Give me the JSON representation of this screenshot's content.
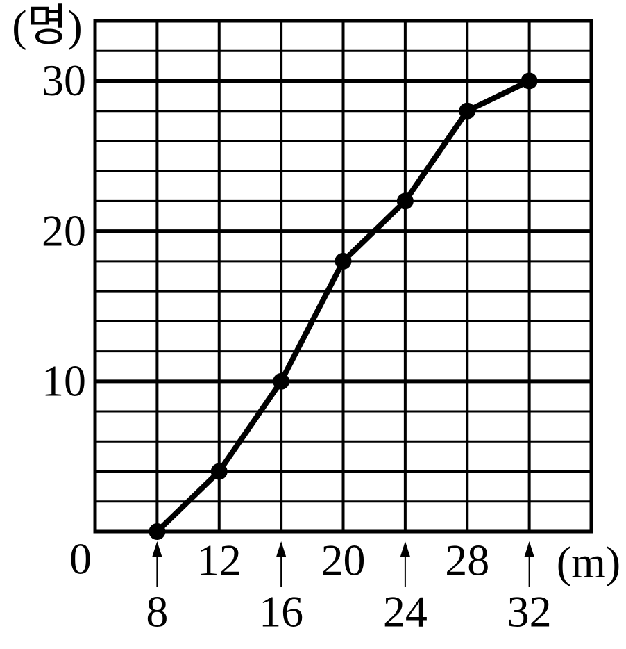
{
  "chart_data": {
    "type": "line",
    "x_label": "(m)",
    "y_label": "(명)",
    "x": [
      8,
      12,
      16,
      20,
      24,
      28,
      32
    ],
    "series": [
      {
        "color": "#000000",
        "values": [
          0,
          4,
          10,
          18,
          22,
          28,
          30
        ]
      }
    ],
    "xlim": [
      4,
      36
    ],
    "ylim": [
      0,
      34
    ],
    "xticks": [
      8,
      12,
      16,
      20,
      24,
      28,
      32
    ],
    "yticks": [
      0,
      10,
      20,
      30
    ],
    "yminor_ticks": [
      2,
      4,
      6,
      8,
      12,
      14,
      16,
      18,
      22,
      24,
      26,
      28,
      32
    ],
    "grid": true
  }
}
